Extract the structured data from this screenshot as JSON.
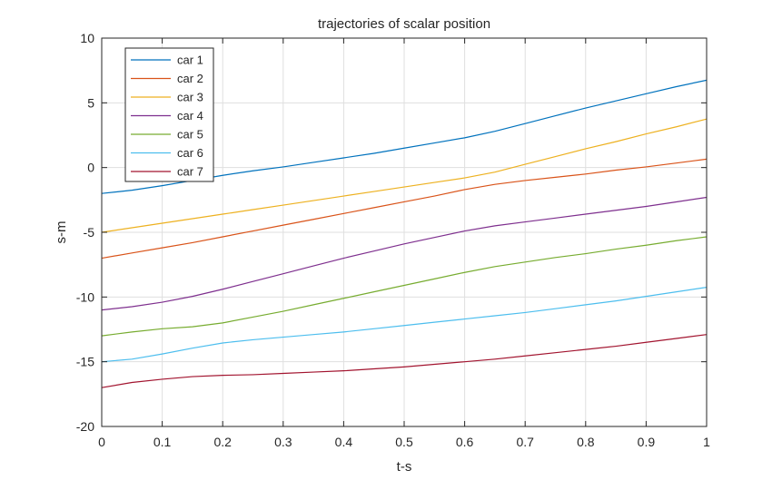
{
  "chart_data": {
    "type": "line",
    "title": "trajectories of scalar position",
    "xlabel": "t-s",
    "ylabel": "s-m",
    "xlim": [
      0,
      1
    ],
    "ylim": [
      -20,
      10
    ],
    "xticks": [
      0,
      0.1,
      0.2,
      0.3,
      0.4,
      0.5,
      0.6,
      0.7,
      0.8,
      0.9,
      1
    ],
    "xtick_labels": [
      "0",
      "0.1",
      "0.2",
      "0.3",
      "0.4",
      "0.5",
      "0.6",
      "0.7",
      "0.8",
      "0.9",
      "1"
    ],
    "yticks": [
      -20,
      -15,
      -10,
      -5,
      0,
      5,
      10
    ],
    "ytick_labels": [
      "-20",
      "-15",
      "-10",
      "-5",
      "0",
      "5",
      "10"
    ],
    "grid": true,
    "legend_position": "top-left",
    "x": [
      0,
      0.05,
      0.1,
      0.15,
      0.2,
      0.25,
      0.3,
      0.35,
      0.4,
      0.45,
      0.5,
      0.55,
      0.6,
      0.65,
      0.7,
      0.75,
      0.8,
      0.85,
      0.9,
      0.95,
      1
    ],
    "series": [
      {
        "name": "car 1",
        "color": "#0072BD",
        "values": [
          -2.0,
          -1.75,
          -1.4,
          -1.0,
          -0.6,
          -0.25,
          0.05,
          0.4,
          0.75,
          1.1,
          1.5,
          1.9,
          2.3,
          2.8,
          3.4,
          4.0,
          4.6,
          5.15,
          5.7,
          6.25,
          6.75
        ]
      },
      {
        "name": "car 2",
        "color": "#D95319",
        "values": [
          -7.0,
          -6.6,
          -6.2,
          -5.8,
          -5.35,
          -4.9,
          -4.45,
          -4.0,
          -3.55,
          -3.1,
          -2.65,
          -2.2,
          -1.7,
          -1.3,
          -1.0,
          -0.75,
          -0.5,
          -0.2,
          0.05,
          0.35,
          0.65
        ]
      },
      {
        "name": "car 3",
        "color": "#EDB120",
        "values": [
          -5.0,
          -4.65,
          -4.3,
          -3.95,
          -3.6,
          -3.25,
          -2.9,
          -2.55,
          -2.2,
          -1.85,
          -1.5,
          -1.15,
          -0.8,
          -0.35,
          0.25,
          0.85,
          1.45,
          2.0,
          2.6,
          3.15,
          3.75
        ]
      },
      {
        "name": "car 4",
        "color": "#7E2F8E",
        "values": [
          -11.0,
          -10.75,
          -10.4,
          -9.95,
          -9.4,
          -8.8,
          -8.2,
          -7.6,
          -7.0,
          -6.45,
          -5.9,
          -5.4,
          -4.9,
          -4.5,
          -4.2,
          -3.9,
          -3.6,
          -3.3,
          -3.0,
          -2.65,
          -2.3
        ]
      },
      {
        "name": "car 5",
        "color": "#77AC30",
        "values": [
          -13.0,
          -12.7,
          -12.45,
          -12.3,
          -12.0,
          -11.55,
          -11.1,
          -10.6,
          -10.1,
          -9.6,
          -9.1,
          -8.6,
          -8.1,
          -7.65,
          -7.3,
          -6.95,
          -6.65,
          -6.3,
          -6.0,
          -5.65,
          -5.35
        ]
      },
      {
        "name": "car 6",
        "color": "#4DBEEE",
        "values": [
          -15.0,
          -14.8,
          -14.4,
          -13.95,
          -13.55,
          -13.3,
          -13.1,
          -12.9,
          -12.7,
          -12.45,
          -12.2,
          -11.95,
          -11.7,
          -11.45,
          -11.2,
          -10.9,
          -10.6,
          -10.3,
          -9.95,
          -9.6,
          -9.25
        ]
      },
      {
        "name": "car 7",
        "color": "#A2142F",
        "values": [
          -17.0,
          -16.6,
          -16.35,
          -16.15,
          -16.05,
          -16.0,
          -15.9,
          -15.8,
          -15.7,
          -15.55,
          -15.4,
          -15.2,
          -15.0,
          -14.8,
          -14.55,
          -14.3,
          -14.05,
          -13.8,
          -13.5,
          -13.2,
          -12.9
        ]
      }
    ]
  }
}
